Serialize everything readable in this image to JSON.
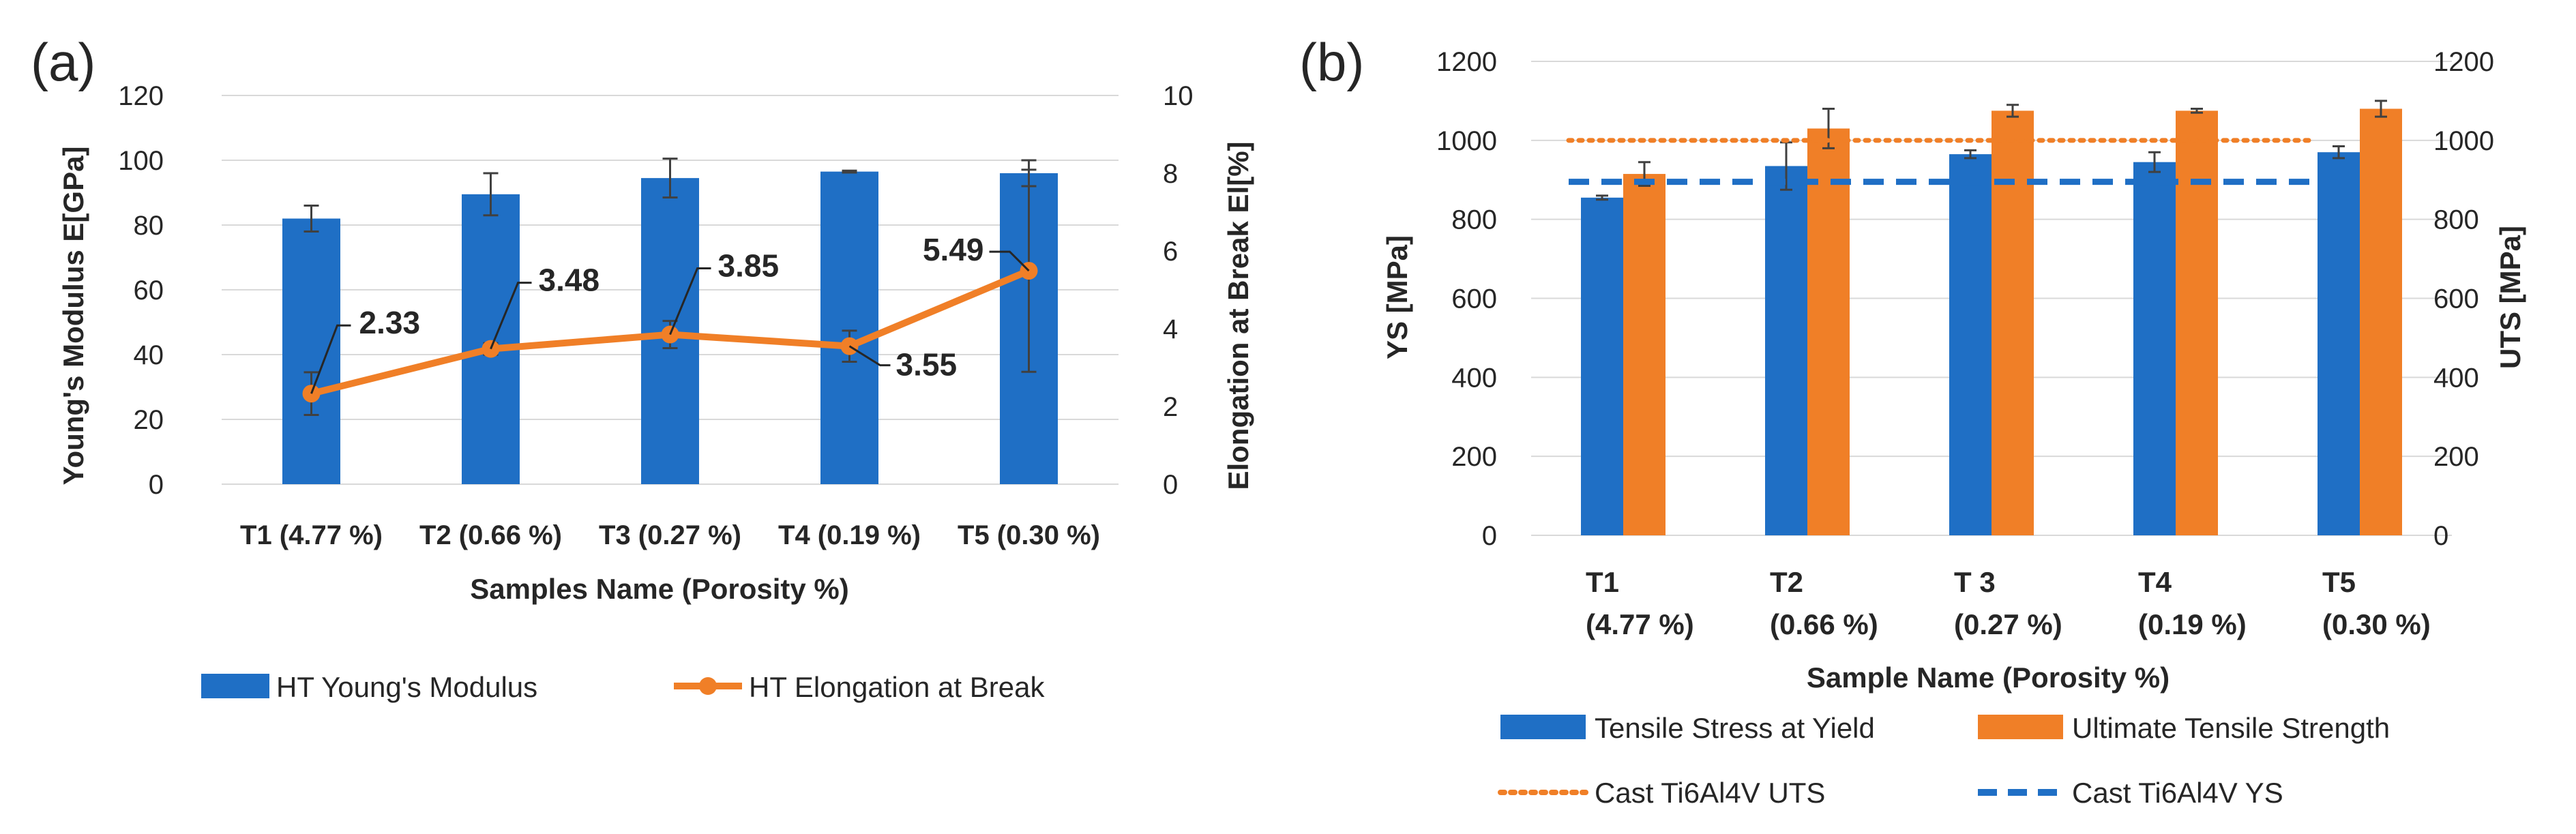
{
  "chart_data": [
    {
      "panel": "(a)",
      "type": "bar",
      "categories": [
        "T1 (4.77 %)",
        "T2 (0.66 %)",
        "T3 (0.27 %)",
        "T4 (0.19 %)",
        "T5 (0.30 %)"
      ],
      "xlabel": "Samples Name (Porosity %)",
      "ylabel": "Young's Modulus E[GPa]",
      "ylabel_right": "Elongation at Break El[%]",
      "ylim": [
        0,
        120
      ],
      "yticks": [
        0,
        20,
        40,
        60,
        80,
        100,
        120
      ],
      "ylim_right": [
        0,
        10
      ],
      "yticks_right": [
        0,
        2,
        4,
        6,
        8,
        10
      ],
      "grid": true,
      "legend": "bottom",
      "series": [
        {
          "name": "HT Young's Modulus",
          "type": "bar",
          "axis": "left",
          "color": "#1f6fc5",
          "values": [
            82,
            89.5,
            94.5,
            96.5,
            96
          ],
          "errors": [
            4,
            6.5,
            6,
            0.3,
            4
          ]
        },
        {
          "name": "HT Elongation at Break",
          "type": "line",
          "axis": "right",
          "color": "#f07f27",
          "values": [
            2.33,
            3.48,
            3.85,
            3.55,
            5.49
          ],
          "errors": [
            0.55,
            0.15,
            0.35,
            0.4,
            2.6
          ],
          "data_labels": [
            "2.33",
            "3.48",
            "3.85",
            "3.55",
            "5.49"
          ]
        }
      ]
    },
    {
      "panel": "(b)",
      "type": "bar",
      "categories": [
        [
          "T1",
          "(4.77 %)"
        ],
        [
          "T2",
          "(0.66 %)"
        ],
        [
          "T 3",
          "(0.27 %)"
        ],
        [
          "T4",
          "(0.19 %)"
        ],
        [
          "T5",
          "(0.30 %)"
        ]
      ],
      "xlabel": "Sample Name (Porosity %)",
      "ylabel": "YS [MPa]",
      "ylabel_right": "UTS [MPa]",
      "ylim": [
        0,
        1200
      ],
      "yticks": [
        0,
        200,
        400,
        600,
        800,
        1000,
        1200
      ],
      "ylim_right": [
        0,
        1200
      ],
      "yticks_right": [
        0,
        200,
        400,
        600,
        800,
        1000,
        1200
      ],
      "grid": true,
      "legend": "bottom",
      "series": [
        {
          "name": "Tensile Stress at Yield",
          "type": "bar",
          "color": "#1f6fc5",
          "values": [
            855,
            935,
            965,
            945,
            970
          ],
          "errors": [
            5,
            60,
            10,
            25,
            15
          ]
        },
        {
          "name": "Ultimate Tensile Strength",
          "type": "bar",
          "color": "#f07f27",
          "values": [
            915,
            1030,
            1075,
            1075,
            1080
          ],
          "errors": [
            30,
            50,
            15,
            5,
            20
          ]
        },
        {
          "name": "Cast Ti6Al4V UTS",
          "type": "reference-line",
          "style": "dotted",
          "color": "#f07f27",
          "value": 1000
        },
        {
          "name": "Cast Ti6Al4V YS",
          "type": "reference-line",
          "style": "dashed",
          "color": "#1f6fc5",
          "value": 895
        }
      ]
    }
  ]
}
